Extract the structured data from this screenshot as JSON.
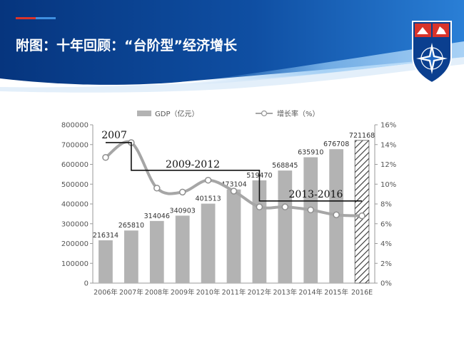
{
  "slide": {
    "title": "附图：十年回顾：“台阶型”经济增长",
    "colors": {
      "header_dark": "#0a3d8c",
      "header_mid": "#1d66c2",
      "accent_red": "#d9342b"
    }
  },
  "chart_data": {
    "type": "bar",
    "categories": [
      "2006年",
      "2007年",
      "2008年",
      "2009年",
      "2010年",
      "2011年",
      "2012年",
      "2013年",
      "2014年",
      "2015年",
      "2016E"
    ],
    "series": [
      {
        "name": "GDP（亿元）",
        "type": "bar",
        "axis": "left",
        "values": [
          216314,
          265810,
          314046,
          340903,
          401513,
          473104,
          519470,
          568845,
          635910,
          676708,
          721168
        ],
        "value_labels": [
          "216314",
          "265810",
          "314046",
          "340903",
          "401513",
          "473104",
          "519470",
          "568845",
          "635910",
          "676708",
          "721168"
        ],
        "color": "#b3b3b3",
        "last_bar_hatched": true
      },
      {
        "name": "增长率（%）",
        "type": "line",
        "axis": "right",
        "values": [
          12.7,
          14.2,
          9.6,
          9.2,
          10.4,
          9.3,
          7.7,
          7.7,
          7.4,
          6.9,
          6.8
        ],
        "color": "#a6a6a6"
      }
    ],
    "y_left": {
      "ticks": [
        "0",
        "100000",
        "200000",
        "300000",
        "400000",
        "500000",
        "600000",
        "700000",
        "800000"
      ],
      "ylim": [
        0,
        800000
      ]
    },
    "y_right": {
      "ticks": [
        "0%",
        "2%",
        "4%",
        "6%",
        "8%",
        "10%",
        "12%",
        "14%",
        "16%"
      ],
      "ylim": [
        0,
        16
      ]
    },
    "annotations": [
      {
        "text": "2007",
        "level": 14.2,
        "from": 0,
        "to": 1
      },
      {
        "text": "2009-2012",
        "level": 11.4,
        "from": 1,
        "to": 6
      },
      {
        "text": "2013-2016",
        "level": 8.3,
        "from": 6,
        "to": 10
      }
    ],
    "grid": false,
    "legend": "top"
  }
}
